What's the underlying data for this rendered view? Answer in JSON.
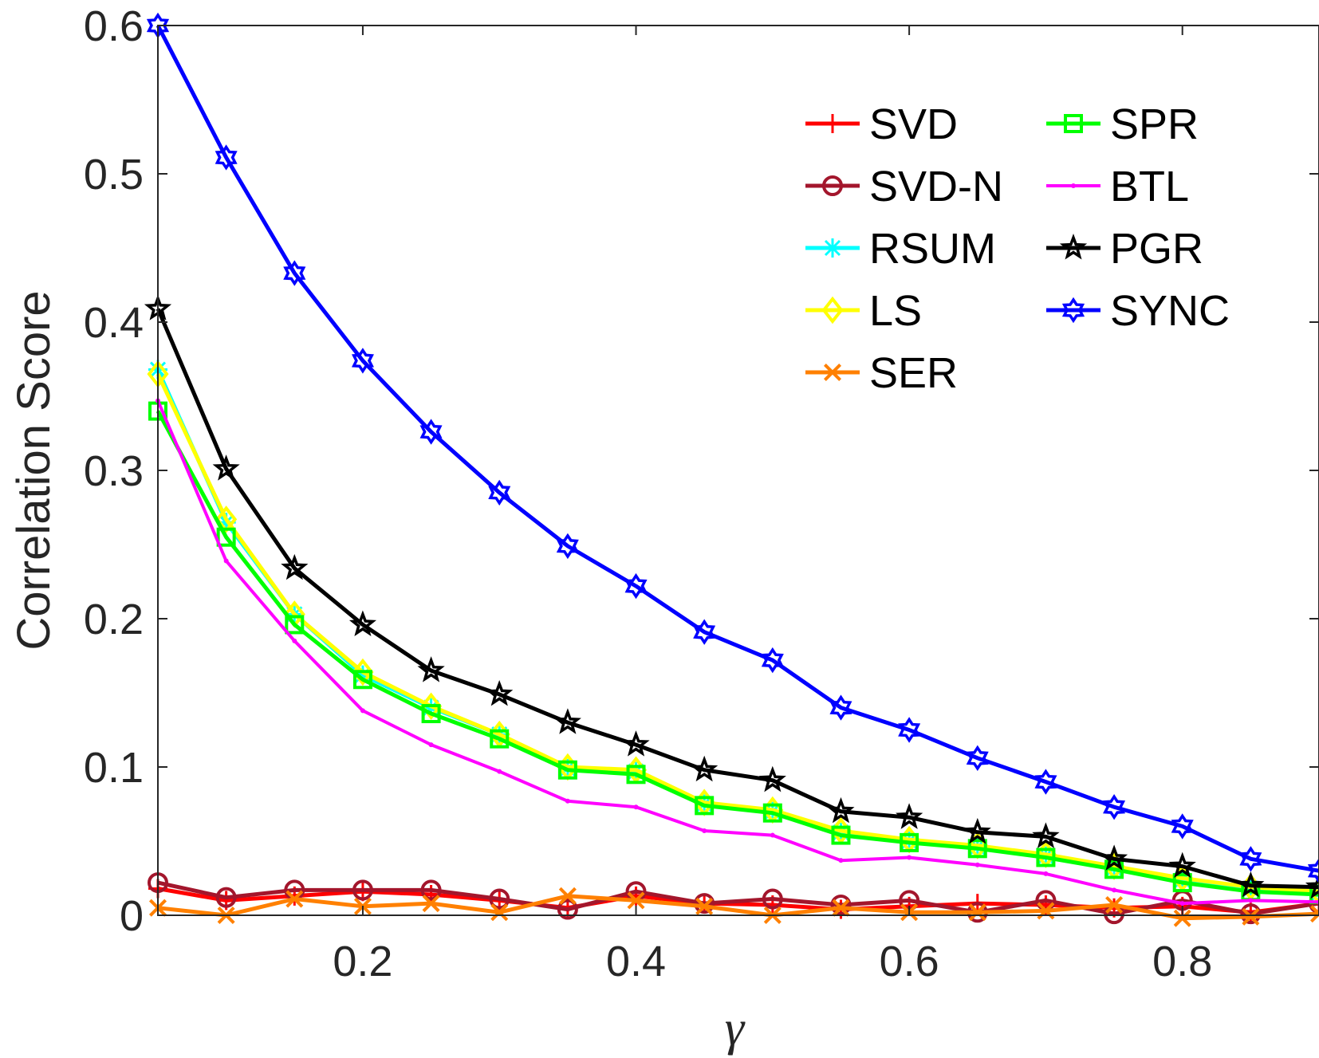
{
  "chart_data": {
    "type": "line",
    "title": "",
    "xlabel": "γ",
    "ylabel": "Correlation Score",
    "xlim": [
      0.05,
      0.9
    ],
    "ylim": [
      0,
      0.6
    ],
    "xticks": [
      0.2,
      0.4,
      0.6,
      0.8
    ],
    "xtick_labels": [
      "0.2",
      "0.4",
      "0.6",
      "0.8"
    ],
    "yticks": [
      0,
      0.1,
      0.2,
      0.3,
      0.4,
      0.5,
      0.6
    ],
    "ytick_labels": [
      "0",
      "0.1",
      "0.2",
      "0.3",
      "0.4",
      "0.5",
      "0.6"
    ],
    "grid": false,
    "legend_position": "top-right",
    "x": [
      0.05,
      0.1,
      0.15,
      0.2,
      0.25,
      0.3,
      0.35,
      0.4,
      0.45,
      0.5,
      0.55,
      0.6,
      0.65,
      0.7,
      0.75,
      0.8,
      0.85,
      0.9
    ],
    "series": [
      {
        "name": "SVD",
        "color": "#ff0000",
        "marker": "plus",
        "values": [
          0.018,
          0.01,
          0.013,
          0.016,
          0.014,
          0.01,
          0.005,
          0.013,
          0.008,
          0.007,
          0.004,
          0.006,
          0.008,
          0.007,
          0.005,
          0.006,
          0.002,
          0.008
        ]
      },
      {
        "name": "SVD-N",
        "color": "#a3162c",
        "marker": "circle",
        "values": [
          0.022,
          0.012,
          0.017,
          0.017,
          0.017,
          0.011,
          0.004,
          0.016,
          0.008,
          0.011,
          0.007,
          0.01,
          0.002,
          0.01,
          0.001,
          0.01,
          0.001,
          0.008
        ]
      },
      {
        "name": "RSUM",
        "color": "#00ffff",
        "marker": "asterisk",
        "values": [
          0.368,
          0.265,
          0.203,
          0.162,
          0.14,
          0.122,
          0.099,
          0.097,
          0.075,
          0.07,
          0.056,
          0.05,
          0.046,
          0.04,
          0.032,
          0.024,
          0.018,
          0.015
        ]
      },
      {
        "name": "LS",
        "color": "#ffff00",
        "marker": "diamond",
        "values": [
          0.365,
          0.267,
          0.203,
          0.164,
          0.141,
          0.122,
          0.1,
          0.098,
          0.076,
          0.071,
          0.057,
          0.051,
          0.047,
          0.041,
          0.033,
          0.025,
          0.019,
          0.016
        ]
      },
      {
        "name": "SER",
        "color": "#ff8000",
        "marker": "x",
        "values": [
          0.005,
          0.0,
          0.011,
          0.006,
          0.008,
          0.002,
          0.013,
          0.01,
          0.006,
          0.0,
          0.005,
          0.002,
          0.002,
          0.003,
          0.007,
          -0.002,
          -0.001,
          0.001
        ]
      },
      {
        "name": "SPR",
        "color": "#00ff00",
        "marker": "square",
        "values": [
          0.34,
          0.255,
          0.196,
          0.159,
          0.136,
          0.119,
          0.098,
          0.095,
          0.074,
          0.069,
          0.054,
          0.049,
          0.045,
          0.039,
          0.031,
          0.022,
          0.016,
          0.014
        ]
      },
      {
        "name": "BTL",
        "color": "#ff00ff",
        "marker": "point",
        "values": [
          0.347,
          0.239,
          0.185,
          0.138,
          0.115,
          0.097,
          0.077,
          0.073,
          0.057,
          0.054,
          0.037,
          0.039,
          0.034,
          0.028,
          0.017,
          0.008,
          0.01,
          0.009
        ]
      },
      {
        "name": "PGR",
        "color": "#000000",
        "marker": "star",
        "values": [
          0.409,
          0.301,
          0.234,
          0.196,
          0.165,
          0.149,
          0.13,
          0.115,
          0.098,
          0.091,
          0.07,
          0.066,
          0.056,
          0.053,
          0.038,
          0.033,
          0.02,
          0.019
        ]
      },
      {
        "name": "SYNC",
        "color": "#0000ff",
        "marker": "hexagram",
        "values": [
          0.6,
          0.511,
          0.433,
          0.374,
          0.326,
          0.285,
          0.249,
          0.222,
          0.191,
          0.172,
          0.14,
          0.125,
          0.106,
          0.09,
          0.073,
          0.06,
          0.038,
          0.03
        ]
      }
    ]
  }
}
